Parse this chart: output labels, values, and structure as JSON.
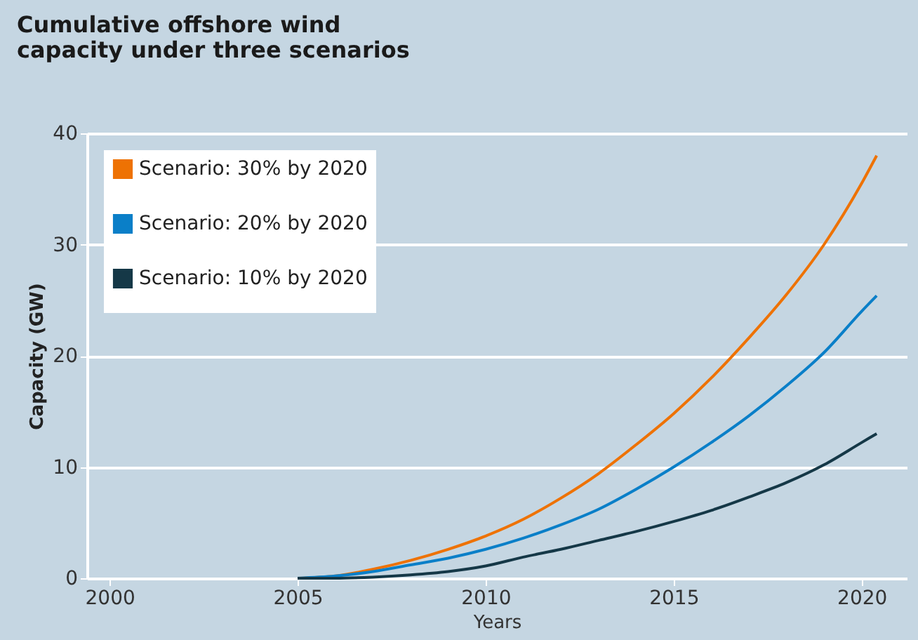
{
  "chart_data": {
    "type": "line",
    "title": [
      "Cumulative offshore wind",
      "capacity under three scenarios"
    ],
    "xlabel": "Years",
    "ylabel": "Capacity (GW)",
    "x": [
      2005,
      2006,
      2007,
      2008,
      2009,
      2010,
      2011,
      2012,
      2013,
      2014,
      2015,
      2016,
      2017,
      2018,
      2019,
      2020,
      2020.4
    ],
    "series": [
      {
        "name": "Scenario: 30% by 2020",
        "color": "#ee7203",
        "values": [
          0,
          0.2,
          0.8,
          1.6,
          2.6,
          3.8,
          5.3,
          7.2,
          9.4,
          12,
          14.8,
          18,
          21.6,
          25.5,
          30,
          35.5,
          38
        ]
      },
      {
        "name": "Scenario: 20% by 2020",
        "color": "#0a7fc8",
        "values": [
          0,
          0.2,
          0.6,
          1.2,
          1.8,
          2.6,
          3.6,
          4.8,
          6.2,
          8,
          10,
          12.2,
          14.6,
          17.3,
          20.3,
          24,
          25.4
        ]
      },
      {
        "name": "Scenario: 10% by 2020",
        "color": "#153847",
        "values": [
          0,
          0,
          0.1,
          0.3,
          0.6,
          1.1,
          1.9,
          2.6,
          3.4,
          4.2,
          5.1,
          6.1,
          7.3,
          8.6,
          10.2,
          12.2,
          13
        ]
      }
    ],
    "xlim": [
      1999.4,
      2021.2
    ],
    "xticks": [
      2000,
      2005,
      2010,
      2015,
      2020
    ],
    "ylim": [
      0,
      40
    ],
    "yticks": [
      0,
      10,
      20,
      30,
      40
    ],
    "grid": "y",
    "legend": "top left",
    "line_style": "solid",
    "marker": "none"
  }
}
